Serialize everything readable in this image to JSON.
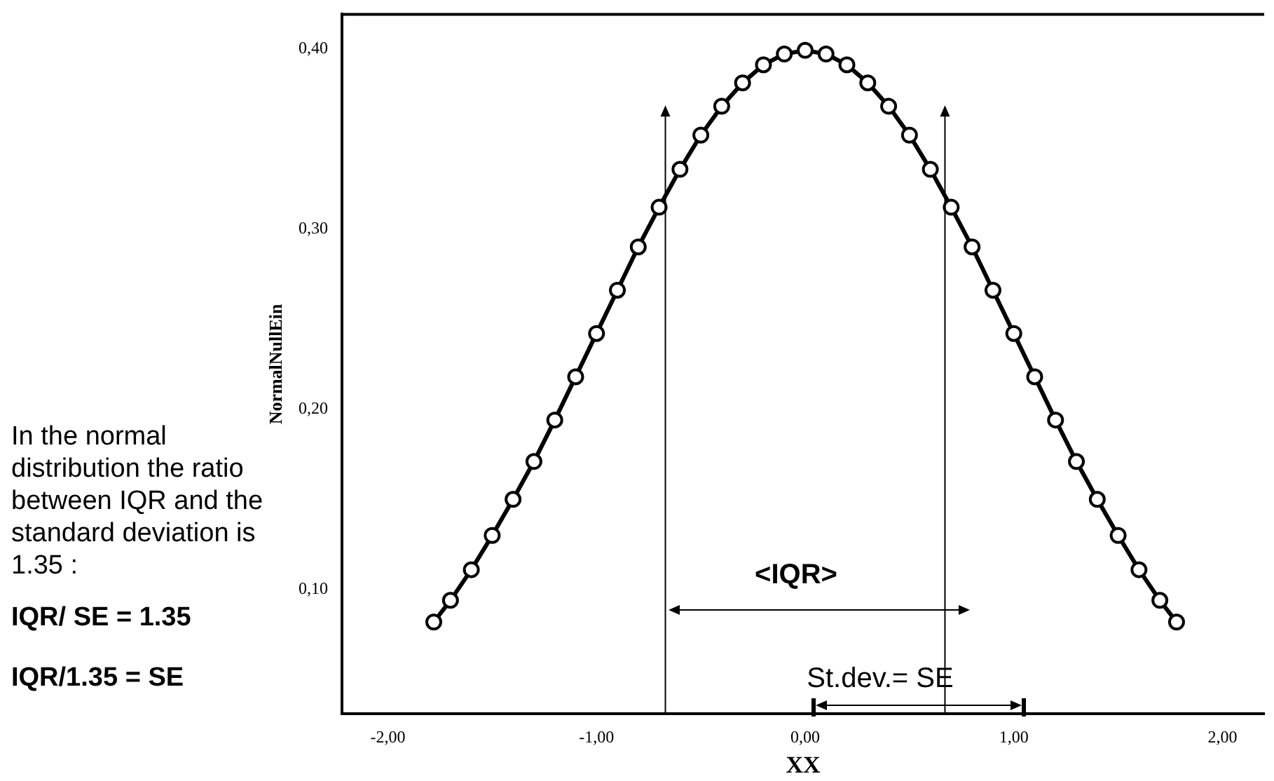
{
  "chart_data": {
    "type": "line",
    "xlabel": "XX",
    "ylabel": "NormalNullEin",
    "x": [
      -1.78,
      -1.7,
      -1.6,
      -1.5,
      -1.4,
      -1.3,
      -1.2,
      -1.1,
      -1.0,
      -0.9,
      -0.8,
      -0.7,
      -0.6,
      -0.5,
      -0.4,
      -0.3,
      -0.2,
      -0.1,
      0,
      0.1,
      0.2,
      0.3,
      0.4,
      0.5,
      0.6,
      0.7,
      0.8,
      0.9,
      1.0,
      1.1,
      1.2,
      1.3,
      1.4,
      1.5,
      1.6,
      1.7,
      1.78
    ],
    "series": [
      {
        "color": "#000000",
        "values": [
          0.082,
          0.094,
          0.111,
          0.13,
          0.15,
          0.171,
          0.194,
          0.218,
          0.242,
          0.266,
          0.29,
          0.312,
          0.333,
          0.352,
          0.368,
          0.381,
          0.391,
          0.397,
          0.399,
          0.397,
          0.391,
          0.381,
          0.368,
          0.352,
          0.333,
          0.312,
          0.29,
          0.266,
          0.242,
          0.218,
          0.194,
          0.171,
          0.15,
          0.13,
          0.111,
          0.094,
          0.082
        ]
      }
    ],
    "xlim": [
      -2.22,
      2.2
    ],
    "ylim": [
      0.031,
      0.419
    ],
    "xticks": [
      {
        "value": -2,
        "label": "-2,00"
      },
      {
        "value": -1,
        "label": "-1,00"
      },
      {
        "value": 0,
        "label": "0,00"
      },
      {
        "value": 1,
        "label": "1,00"
      },
      {
        "value": 2,
        "label": "2,00"
      }
    ],
    "yticks": [
      {
        "value": 0.1,
        "label": "0,10"
      },
      {
        "value": 0.2,
        "label": "0,20"
      },
      {
        "value": 0.3,
        "label": "0,30"
      },
      {
        "value": 0.4,
        "label": "0,40"
      }
    ],
    "annotations": [
      "In the normal distribution the ratio between IQR and the standard deviation is 1.35 :",
      "IQR/ SE = 1.35",
      "IQR/1.35 = SE",
      "<IQR>",
      "St.dev.= SE"
    ],
    "ref_lines": [
      {
        "axis": "x",
        "value": -0.67,
        "color": "#000000"
      },
      {
        "axis": "x",
        "value": 0.67,
        "color": "#000000"
      }
    ],
    "grid": false,
    "legend": false,
    "marker": "circle",
    "line_style": "solid"
  }
}
